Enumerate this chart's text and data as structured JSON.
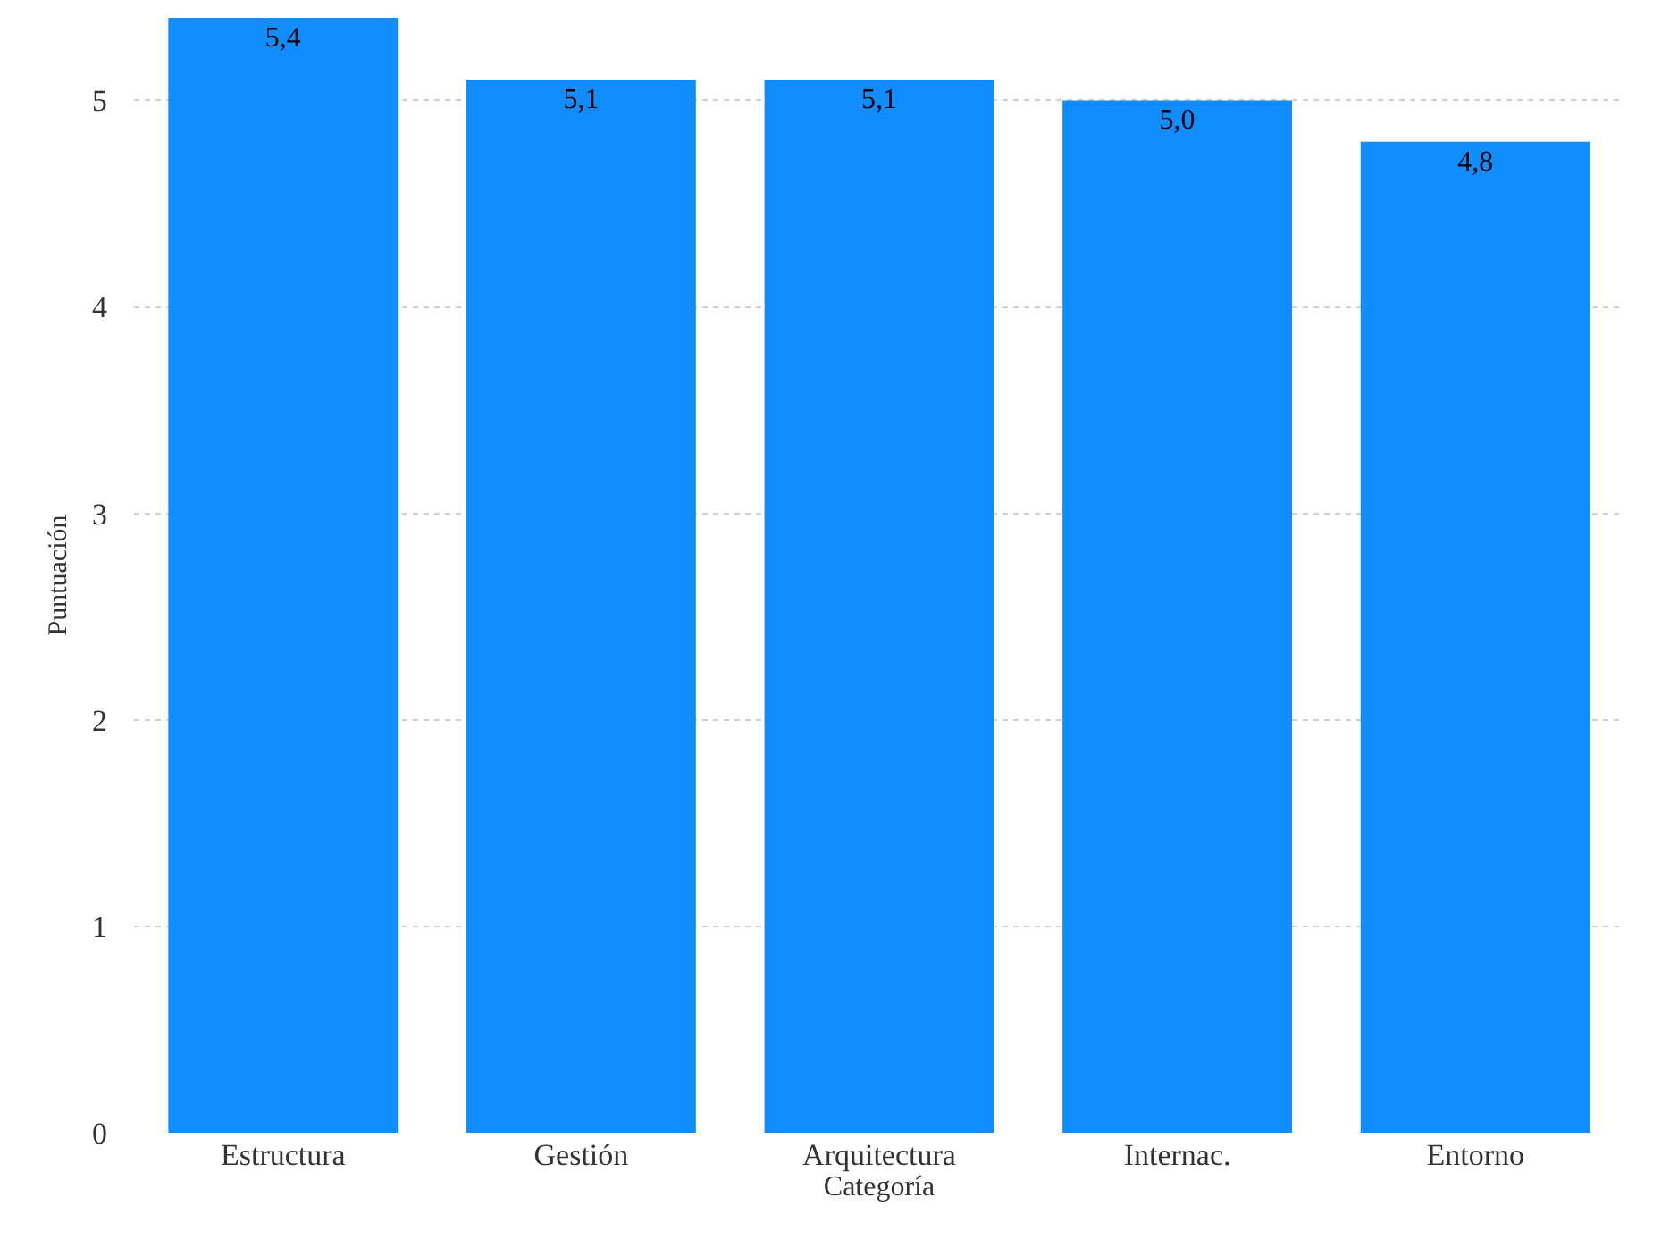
{
  "chart_data": {
    "type": "bar",
    "xlabel": "Categoría",
    "ylabel": "Puntuación",
    "categories": [
      "Estructura",
      "Gestión",
      "Arquitectura",
      "Internac.",
      "Entorno"
    ],
    "values": [
      5.4,
      5.1,
      5.1,
      5.0,
      4.8
    ],
    "value_labels": [
      "5,4",
      "5,1",
      "5,1",
      "5,0",
      "4,8"
    ],
    "color": "#118dff",
    "ylim": [
      0,
      5.4
    ],
    "yticks": [
      0,
      1,
      2,
      3,
      4,
      5
    ],
    "grid": "y"
  }
}
